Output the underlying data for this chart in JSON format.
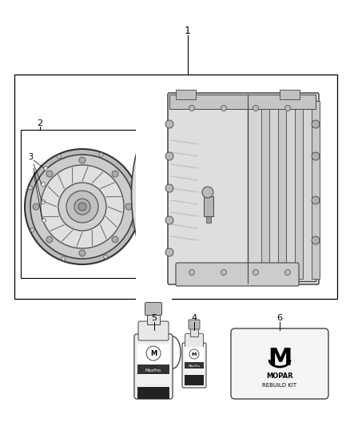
{
  "bg_color": "#ffffff",
  "label_1": "1",
  "label_2": "2",
  "label_3": "3",
  "label_4": "4",
  "label_5": "5",
  "label_6": "6",
  "mopar_text": "MOPAR",
  "rebuild_kit_text": "REBUILD KIT",
  "maxpro_text": "MaxPro",
  "line_color": "#000000",
  "stroke_color": "#444444",
  "light_gray": "#d8d8d8",
  "mid_gray": "#aaaaaa",
  "dark_gray": "#666666",
  "white": "#ffffff"
}
